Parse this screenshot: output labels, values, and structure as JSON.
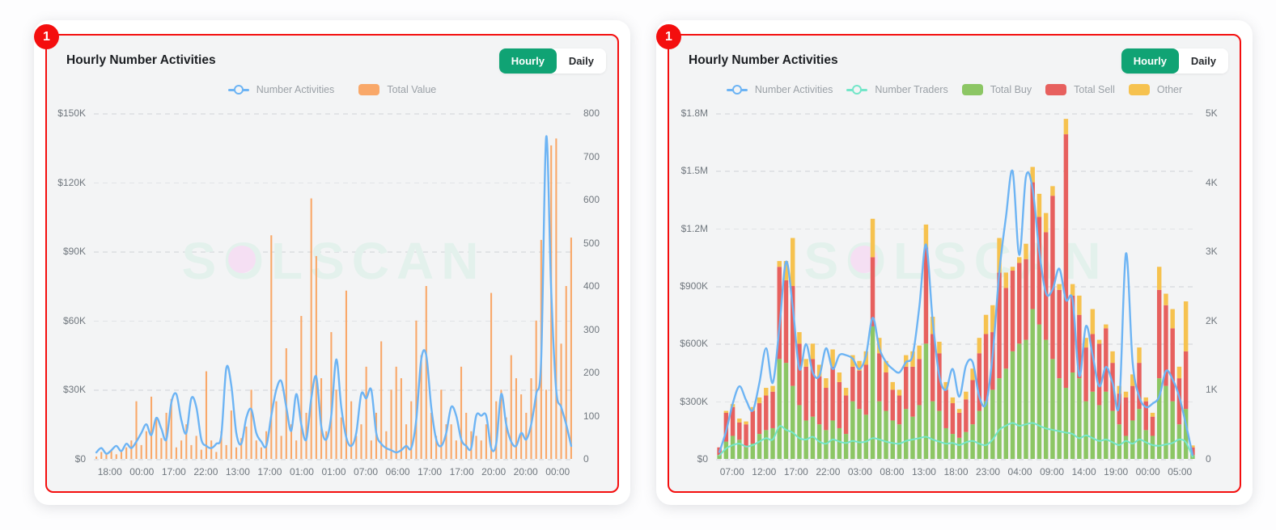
{
  "page": {
    "background": "#fdfdfe"
  },
  "badge": {
    "label": "1"
  },
  "colors": {
    "annotation_red": "#f40e0e",
    "card_bg": "#ffffff",
    "chart_bg": "#f3f4f5",
    "toggle_active_green": "#10a374",
    "grid": "#e1e3e6",
    "axis_text": "#70777e",
    "legend_text": "#9ba1a7",
    "blue_line": "#6db4f4",
    "teal_line": "#74e6c9",
    "orange_bar": "#f9a869",
    "green_bar": "#8cc664",
    "red_bar": "#e7605e",
    "yellow_bar": "#f6c24f",
    "watermark_text": "#e3f1ec",
    "watermark_dot": "#f5dff3"
  },
  "charts": [
    {
      "title": "Hourly Number Activities",
      "toggle": {
        "options": [
          "Hourly",
          "Daily"
        ],
        "active": "Hourly"
      },
      "watermark": "SOLSCAN",
      "legend": [
        {
          "label": "Number Activities",
          "type": "line",
          "color": "#6db4f4"
        },
        {
          "label": "Total Value",
          "type": "rect",
          "color": "#f9a869"
        }
      ],
      "chart_data": {
        "type": "bar+line combo, dual axis",
        "x_tick_labels": [
          "18:00",
          "00:00",
          "17:00",
          "22:00",
          "13:00",
          "17:00",
          "01:00",
          "01:00",
          "07:00",
          "06:00",
          "17:00",
          "17:00",
          "20:00",
          "20:00",
          "00:00"
        ],
        "left_axis": {
          "labels": [
            "$150K",
            "$120K",
            "$90K",
            "$60K",
            "$30K",
            "$0"
          ],
          "max": 150000,
          "min": 0
        },
        "right_axis": {
          "labels": [
            "800",
            "700",
            "600",
            "500",
            "400",
            "300",
            "200",
            "100",
            "0"
          ],
          "max": 800,
          "min": 0
        },
        "grid": "dashed horizontal",
        "legend_position": "top center",
        "series": [
          {
            "name": "Total Value",
            "type": "bar",
            "axis": "left",
            "color": "#f9a869",
            "values": [
              1000,
              3000,
              2000,
              4000,
              2000,
              3000,
              5000,
              8000,
              25000,
              6000,
              12000,
              27000,
              18000,
              9000,
              20000,
              26000,
              5000,
              8000,
              15000,
              6000,
              10000,
              4000,
              38000,
              8000,
              3000,
              12000,
              6000,
              21000,
              5000,
              9000,
              14000,
              30000,
              8000,
              5000,
              12000,
              97000,
              25000,
              10000,
              48000,
              15000,
              8000,
              62000,
              20000,
              113000,
              88000,
              35000,
              12000,
              55000,
              30000,
              18000,
              73000,
              25000,
              10000,
              15000,
              40000,
              8000,
              20000,
              51000,
              12000,
              30000,
              40000,
              35000,
              15000,
              25000,
              60000,
              45000,
              75000,
              20000,
              10000,
              30000,
              15000,
              15000,
              8000,
              40000,
              20000,
              12000,
              10000,
              8000,
              15000,
              72000,
              25000,
              30000,
              18000,
              45000,
              35000,
              28000,
              20000,
              35000,
              60000,
              95000,
              30000,
              136000,
              139000,
              50000,
              75000,
              96000
            ]
          },
          {
            "name": "Number Activities",
            "type": "line",
            "axis": "right",
            "color": "#6db4f4",
            "values": [
              15,
              25,
              12,
              20,
              30,
              18,
              35,
              25,
              40,
              60,
              80,
              55,
              95,
              70,
              45,
              130,
              150,
              90,
              60,
              140,
              120,
              45,
              30,
              25,
              35,
              55,
              210,
              170,
              60,
              35,
              95,
              115,
              60,
              40,
              30,
              100,
              160,
              180,
              120,
              65,
              150,
              80,
              45,
              140,
              190,
              75,
              45,
              100,
              230,
              120,
              50,
              30,
              60,
              150,
              140,
              160,
              60,
              35,
              25,
              20,
              15,
              20,
              30,
              25,
              90,
              230,
              240,
              120,
              45,
              30,
              60,
              120,
              100,
              45,
              30,
              25,
              100,
              100,
              100,
              25,
              35,
              150,
              80,
              40,
              30,
              60,
              45,
              80,
              150,
              230,
              745,
              390,
              160,
              120,
              80,
              30
            ]
          }
        ]
      }
    },
    {
      "title": "Hourly Number Activities",
      "toggle": {
        "options": [
          "Hourly",
          "Daily"
        ],
        "active": "Hourly"
      },
      "watermark": "SOLSCAN",
      "legend": [
        {
          "label": "Number Activities",
          "type": "line",
          "color": "#6db4f4"
        },
        {
          "label": "Number Traders",
          "type": "line",
          "color": "#74e6c9"
        },
        {
          "label": "Total Buy",
          "type": "rect",
          "color": "#8cc664"
        },
        {
          "label": "Total Sell",
          "type": "rect",
          "color": "#e7605e"
        },
        {
          "label": "Other",
          "type": "rect",
          "color": "#f6c24f"
        }
      ],
      "chart_data": {
        "type": "stacked bar + two lines, dual axis",
        "x_tick_labels": [
          "07:00",
          "12:00",
          "17:00",
          "22:00",
          "03:00",
          "08:00",
          "13:00",
          "18:00",
          "23:00",
          "04:00",
          "09:00",
          "14:00",
          "19:00",
          "00:00",
          "05:00"
        ],
        "left_axis": {
          "labels": [
            "$1.8M",
            "$1.5M",
            "$1.2M",
            "$900K",
            "$600K",
            "$300K",
            "$0"
          ],
          "max": 1800000,
          "min": 0
        },
        "right_axis": {
          "labels": [
            "5K",
            "4K",
            "3K",
            "2K",
            "1K",
            "0"
          ],
          "max": 5000,
          "min": 0
        },
        "grid": "dashed horizontal",
        "legend_position": "top center",
        "series": [
          {
            "name": "Total Buy",
            "type": "bar",
            "stack": true,
            "axis": "left",
            "color": "#8cc664",
            "values": [
              20000,
              90000,
              120000,
              100000,
              60000,
              80000,
              130000,
              150000,
              160000,
              520000,
              500000,
              380000,
              280000,
              200000,
              220000,
              180000,
              150000,
              200000,
              160000,
              130000,
              300000,
              260000,
              230000,
              690000,
              300000,
              250000,
              200000,
              180000,
              260000,
              220000,
              280000,
              600000,
              300000,
              250000,
              160000,
              130000,
              110000,
              140000,
              180000,
              250000,
              300000,
              360000,
              420000,
              470000,
              560000,
              600000,
              620000,
              780000,
              700000,
              620000,
              520000,
              420000,
              370000,
              450000,
              420000,
              300000,
              350000,
              280000,
              350000,
              250000,
              180000,
              120000,
              200000,
              260000,
              150000,
              120000,
              420000,
              380000,
              300000,
              180000,
              260000,
              20000
            ]
          },
          {
            "name": "Total Sell",
            "type": "bar",
            "stack": true,
            "axis": "left",
            "color": "#e7605e",
            "values": [
              40000,
              150000,
              150000,
              90000,
              120000,
              170000,
              160000,
              180000,
              190000,
              480000,
              430000,
              520000,
              320000,
              280000,
              300000,
              250000,
              220000,
              280000,
              240000,
              200000,
              180000,
              200000,
              260000,
              360000,
              250000,
              200000,
              160000,
              150000,
              220000,
              260000,
              240000,
              500000,
              350000,
              300000,
              200000,
              160000,
              130000,
              170000,
              230000,
              300000,
              350000,
              300000,
              550000,
              420000,
              420000,
              420000,
              420000,
              660000,
              560000,
              560000,
              850000,
              460000,
              1320000,
              400000,
              330000,
              280000,
              300000,
              320000,
              330000,
              250000,
              160000,
              200000,
              180000,
              240000,
              150000,
              100000,
              460000,
              420000,
              380000,
              240000,
              300000,
              40000
            ]
          },
          {
            "name": "Other",
            "type": "bar",
            "stack": true,
            "axis": "left",
            "color": "#f6c24f",
            "values": [
              0,
              10000,
              15000,
              20000,
              15000,
              20000,
              30000,
              40000,
              30000,
              30000,
              100000,
              250000,
              60000,
              40000,
              80000,
              60000,
              50000,
              90000,
              50000,
              40000,
              60000,
              50000,
              70000,
              200000,
              80000,
              60000,
              40000,
              30000,
              60000,
              80000,
              70000,
              120000,
              90000,
              60000,
              40000,
              30000,
              20000,
              40000,
              60000,
              80000,
              100000,
              140000,
              180000,
              80000,
              20000,
              30000,
              80000,
              80000,
              120000,
              100000,
              50000,
              30000,
              80000,
              60000,
              100000,
              50000,
              130000,
              20000,
              20000,
              60000,
              40000,
              30000,
              60000,
              80000,
              20000,
              20000,
              120000,
              60000,
              100000,
              60000,
              260000,
              10000
            ]
          },
          {
            "name": "Number Traders",
            "type": "line",
            "axis": "right",
            "color": "#74e6c9",
            "values": [
              50,
              150,
              200,
              220,
              180,
              200,
              250,
              300,
              280,
              470,
              420,
              380,
              300,
              280,
              320,
              250,
              220,
              280,
              250,
              230,
              260,
              240,
              250,
              300,
              280,
              250,
              230,
              220,
              260,
              280,
              300,
              320,
              280,
              250,
              220,
              230,
              200,
              240,
              260,
              220,
              200,
              280,
              420,
              480,
              520,
              480,
              500,
              520,
              480,
              440,
              420,
              400,
              380,
              360,
              300,
              340,
              300,
              260,
              280,
              240,
              200,
              260,
              220,
              280,
              240,
              200,
              190,
              210,
              230,
              280,
              240,
              30
            ]
          },
          {
            "name": "Number Activities",
            "type": "line",
            "axis": "right",
            "color": "#6db4f4",
            "values": [
              100,
              400,
              800,
              1050,
              850,
              700,
              1100,
              1600,
              1100,
              1900,
              2850,
              2200,
              1300,
              1660,
              1250,
              1200,
              1600,
              1300,
              1500,
              1500,
              1450,
              1300,
              1500,
              2040,
              1600,
              1400,
              1300,
              1250,
              1400,
              1500,
              2200,
              3100,
              2000,
              1200,
              1000,
              1300,
              900,
              1350,
              1400,
              900,
              800,
              1500,
              2700,
              3500,
              4160,
              2950,
              4080,
              3900,
              3000,
              2400,
              2450,
              2750,
              2300,
              2300,
              1200,
              1920,
              1500,
              1050,
              1330,
              1100,
              800,
              2970,
              1400,
              900,
              750,
              800,
              900,
              1270,
              1150,
              900,
              500,
              60
            ]
          }
        ]
      }
    }
  ]
}
